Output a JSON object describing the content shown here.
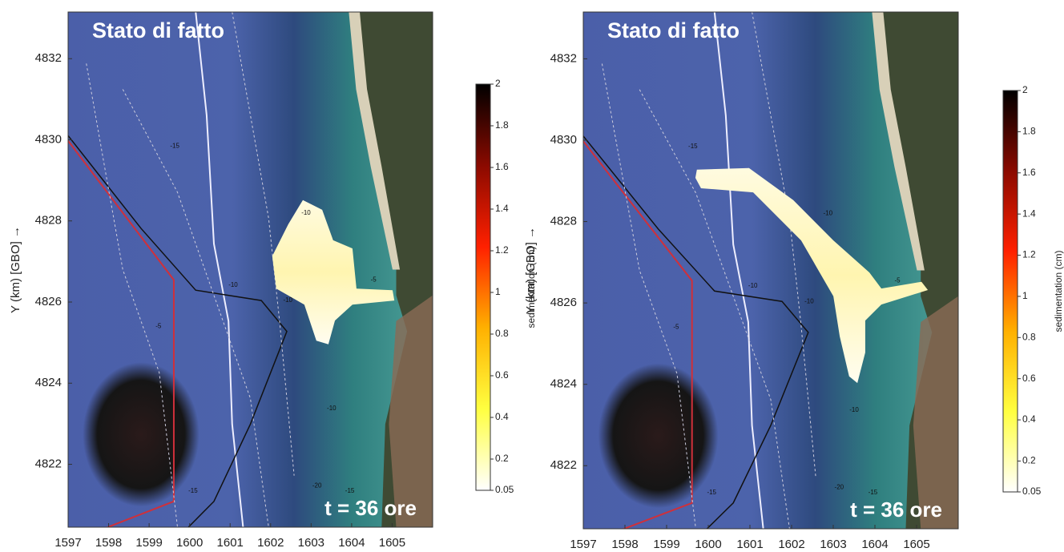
{
  "panels": [
    {
      "title": "Stato di fatto",
      "annotation": "t = 36 ore",
      "y_label": "Y (km) [GBO] →",
      "xlim": [
        1597,
        1606
      ],
      "ylim": [
        4820.45,
        4833.15
      ],
      "xticks": [
        1597,
        1598,
        1599,
        1600,
        1601,
        1602,
        1603,
        1604,
        1605
      ],
      "yticks": [
        4822,
        4824,
        4826,
        4828,
        4830,
        4832
      ],
      "colorbar": {
        "label": "sedimentation (cm)",
        "lim": [
          0.05,
          2
        ],
        "ticks": [
          0.05,
          0.2,
          0.4,
          0.6,
          0.8,
          1,
          1.2,
          1.4,
          1.6,
          1.8,
          2
        ]
      },
      "contour_labels": [
        -15,
        -10,
        -5,
        -10,
        -10,
        -5,
        -10,
        -15,
        -20,
        -15
      ]
    },
    {
      "title": "Stato di fatto",
      "annotation": "t = 36 ore",
      "y_label": "Y (km) [GBO] →",
      "xlim": [
        1597,
        1606
      ],
      "ylim": [
        4820.45,
        4833.15
      ],
      "xticks": [
        1597,
        1598,
        1599,
        1600,
        1601,
        1602,
        1603,
        1604,
        1605
      ],
      "yticks": [
        4822,
        4824,
        4826,
        4828,
        4830,
        4832
      ],
      "colorbar": {
        "label": "sedimentation (cm)",
        "lim": [
          0.05,
          2
        ],
        "ticks": [
          0.05,
          0.2,
          0.4,
          0.6,
          0.8,
          1,
          1.2,
          1.4,
          1.6,
          1.8,
          2
        ]
      },
      "contour_labels": [
        -15,
        -10,
        -5,
        -10,
        -10,
        -5,
        -10,
        -15,
        -20,
        -15
      ]
    }
  ]
}
